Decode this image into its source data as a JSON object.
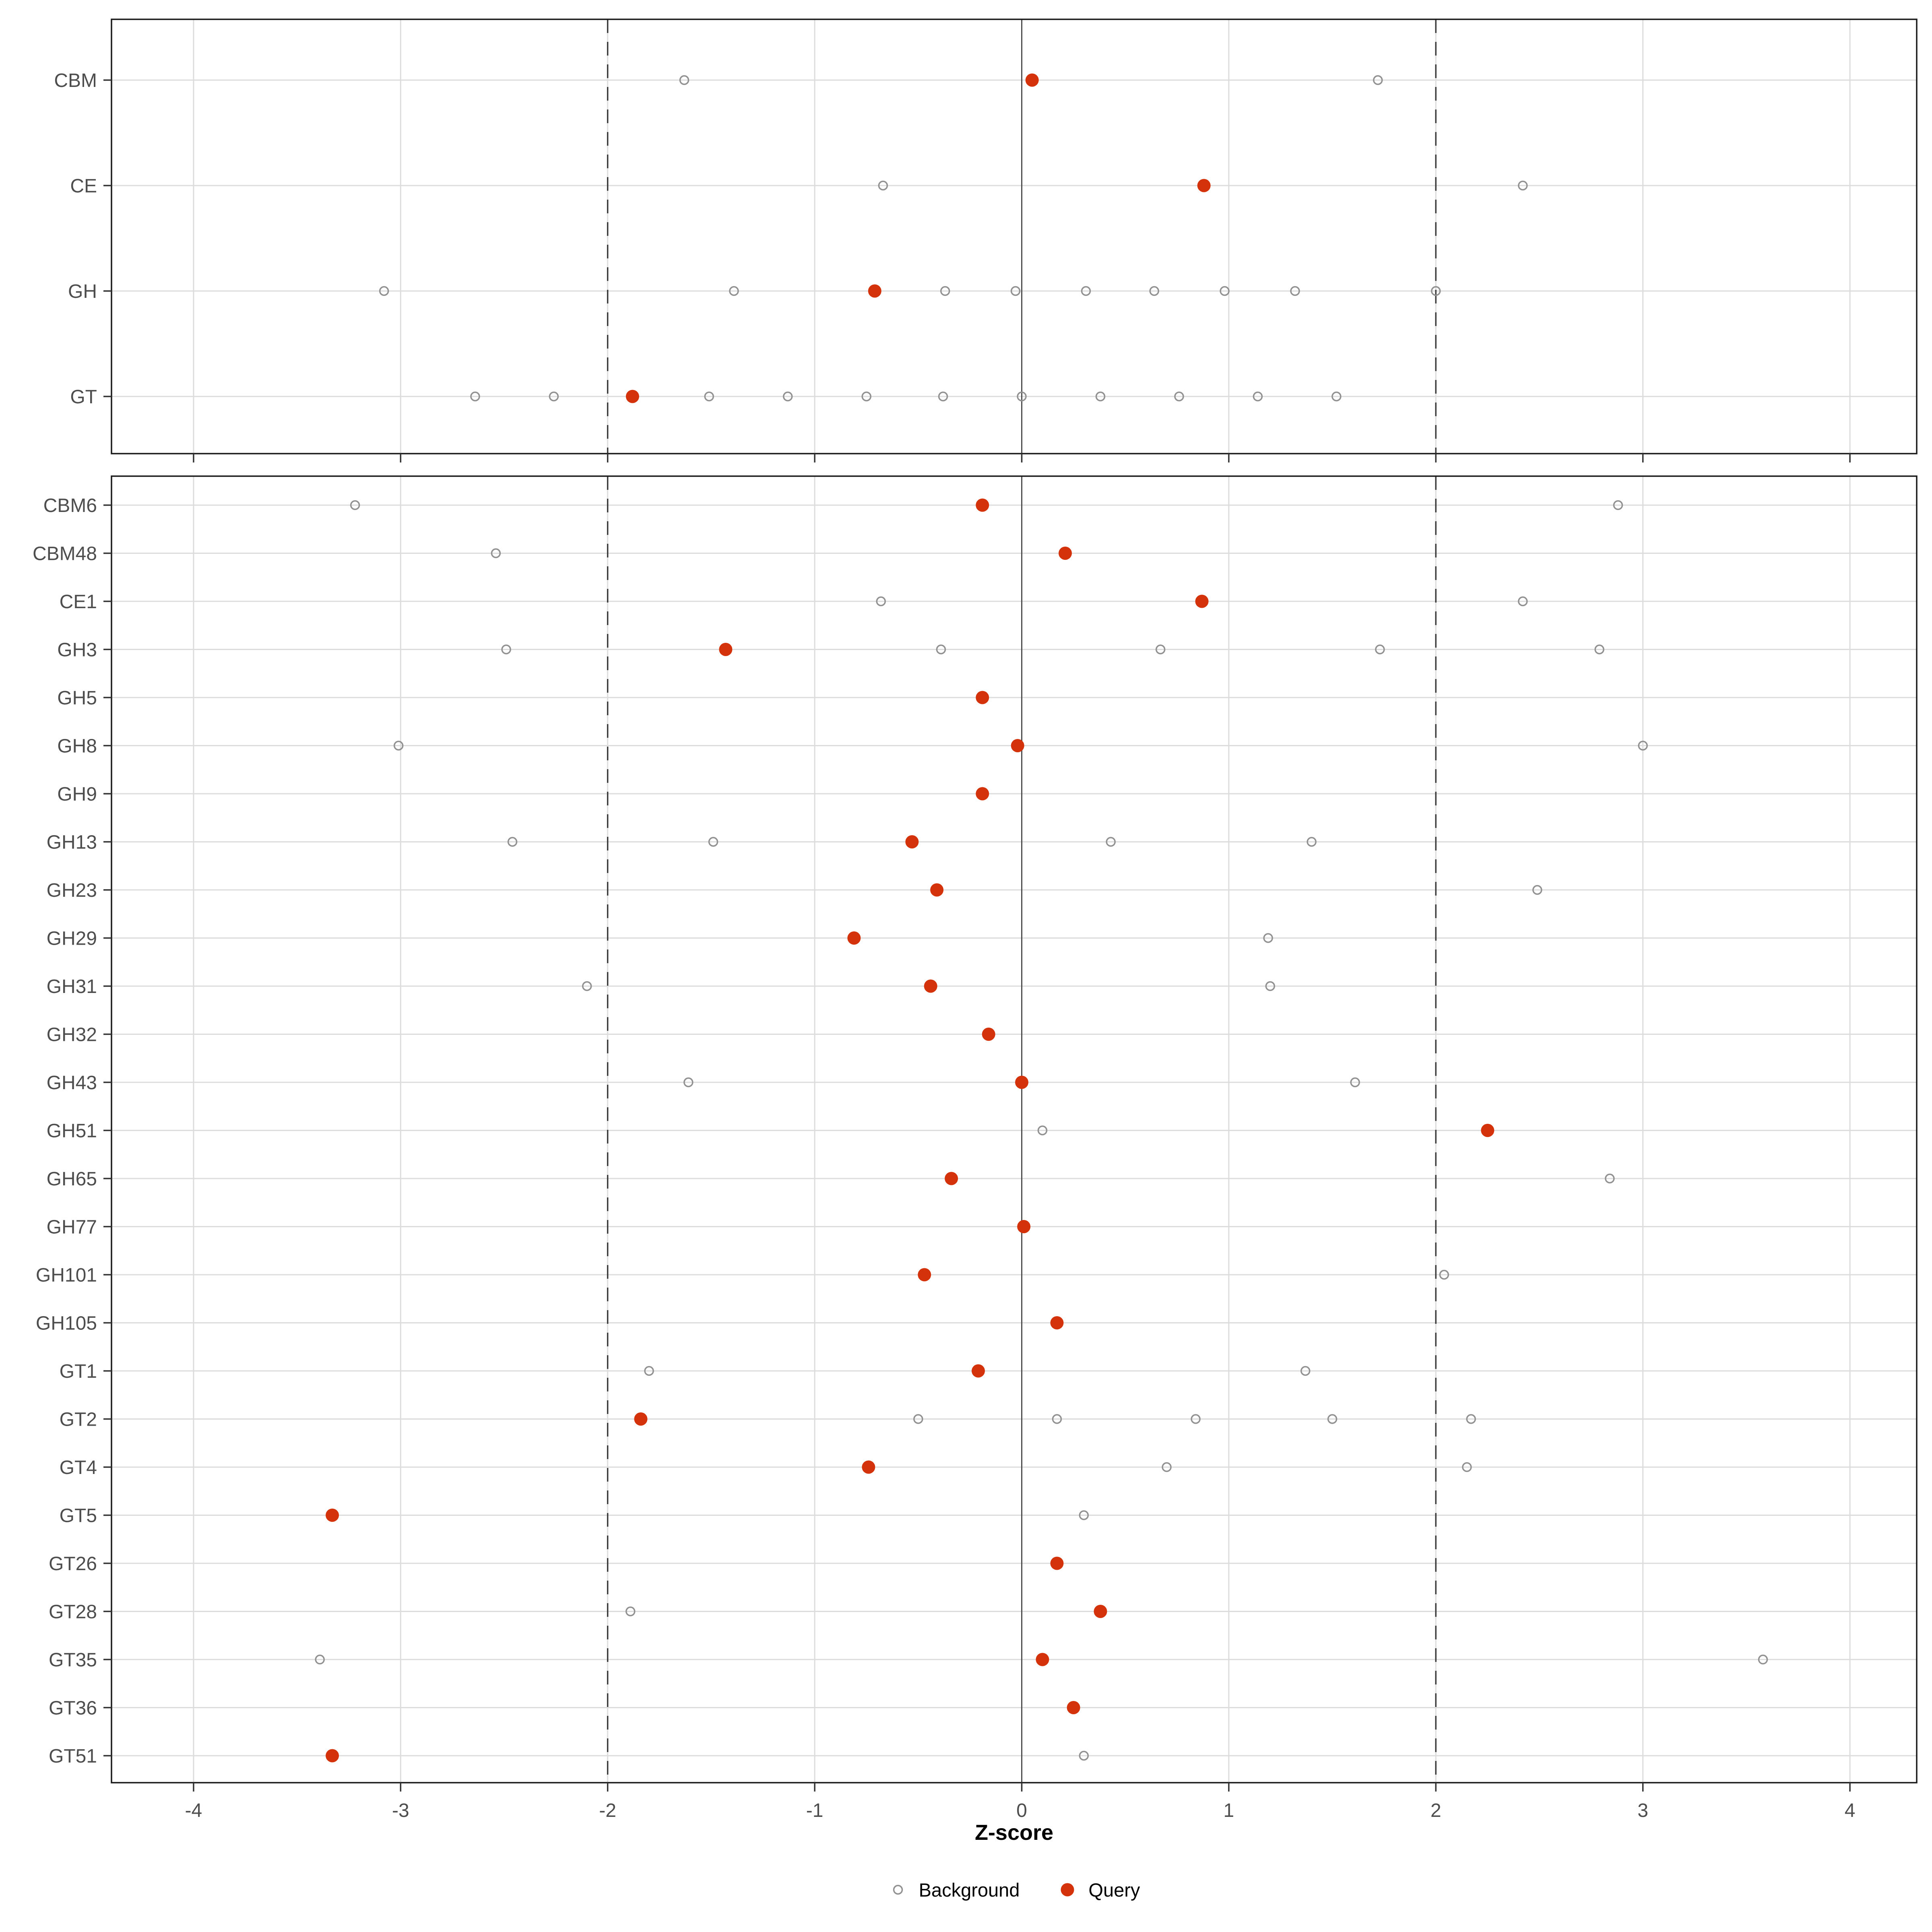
{
  "chart_data": {
    "type": "scatter",
    "title": "",
    "xlabel": "Z-score",
    "ylabel": "",
    "x_ticks": [
      -4,
      -3,
      -2,
      -1,
      0,
      1,
      2,
      3,
      4
    ],
    "xlim": [
      -4.4,
      4.33
    ],
    "grid": "major",
    "legend_position": "bottom",
    "reference_lines": {
      "dashed_at": [
        -2,
        2
      ],
      "solid_at": [
        0
      ]
    },
    "legend": {
      "items": [
        {
          "label": "Background",
          "marker": "open-circle"
        },
        {
          "label": "Query",
          "marker": "filled-circle"
        }
      ]
    },
    "panels": [
      {
        "name": "top",
        "rows": [
          {
            "label": "CBM",
            "query": 0.05,
            "background": [
              -1.63,
              1.72
            ]
          },
          {
            "label": "CE",
            "query": 0.88,
            "background": [
              -0.67,
              2.42
            ]
          },
          {
            "label": "GH",
            "query": -0.71,
            "background": [
              -3.08,
              -1.39,
              -0.37,
              -0.03,
              0.31,
              0.64,
              0.98,
              1.32,
              2.0
            ]
          },
          {
            "label": "GT",
            "query": -1.88,
            "background": [
              -2.64,
              -2.26,
              -1.51,
              -1.13,
              -0.75,
              -0.38,
              0.0,
              0.38,
              0.76,
              1.14,
              1.52
            ]
          }
        ]
      },
      {
        "name": "bottom",
        "rows": [
          {
            "label": "CBM6",
            "query": -0.19,
            "background": [
              -3.22,
              2.88
            ]
          },
          {
            "label": "CBM48",
            "query": 0.21,
            "background": [
              -2.54
            ]
          },
          {
            "label": "CE1",
            "query": 0.87,
            "background": [
              -0.68,
              2.42
            ]
          },
          {
            "label": "GH3",
            "query": -1.43,
            "background": [
              -2.49,
              -0.39,
              0.67,
              1.73,
              2.79
            ]
          },
          {
            "label": "GH5",
            "query": -0.19,
            "background": []
          },
          {
            "label": "GH8",
            "query": -0.02,
            "background": [
              -3.01,
              3.0
            ]
          },
          {
            "label": "GH9",
            "query": -0.19,
            "background": []
          },
          {
            "label": "GH13",
            "query": -0.53,
            "background": [
              -2.46,
              -1.49,
              0.43,
              1.4
            ]
          },
          {
            "label": "GH23",
            "query": -0.41,
            "background": [
              2.49
            ]
          },
          {
            "label": "GH29",
            "query": -0.81,
            "background": [
              1.19
            ]
          },
          {
            "label": "GH31",
            "query": -0.44,
            "background": [
              -2.1,
              1.2
            ]
          },
          {
            "label": "GH32",
            "query": -0.16,
            "background": []
          },
          {
            "label": "GH43",
            "query": 0.0,
            "background": [
              -1.61,
              1.61
            ]
          },
          {
            "label": "GH51",
            "query": 2.25,
            "background": [
              0.1
            ]
          },
          {
            "label": "GH65",
            "query": -0.34,
            "background": [
              2.84
            ]
          },
          {
            "label": "GH77",
            "query": 0.01,
            "background": []
          },
          {
            "label": "GH101",
            "query": -0.47,
            "background": [
              2.04
            ]
          },
          {
            "label": "GH105",
            "query": 0.17,
            "background": []
          },
          {
            "label": "GT1",
            "query": -0.21,
            "background": [
              -1.8,
              1.37
            ]
          },
          {
            "label": "GT2",
            "query": -1.84,
            "background": [
              -0.5,
              0.17,
              0.84,
              1.5,
              2.17
            ]
          },
          {
            "label": "GT4",
            "query": -0.74,
            "background": [
              0.7,
              2.15
            ]
          },
          {
            "label": "GT5",
            "query": -3.33,
            "background": [
              0.3
            ]
          },
          {
            "label": "GT26",
            "query": 0.17,
            "background": []
          },
          {
            "label": "GT28",
            "query": 0.38,
            "background": [
              -1.89
            ]
          },
          {
            "label": "GT35",
            "query": 0.1,
            "background": [
              -3.39,
              3.58
            ]
          },
          {
            "label": "GT36",
            "query": 0.25,
            "background": []
          },
          {
            "label": "GT51",
            "query": -3.33,
            "background": [
              0.3
            ]
          }
        ]
      }
    ]
  },
  "colors": {
    "query": "#d4320b",
    "background_stroke": "#919191",
    "grid": "#dcdcdc",
    "axis_text": "#4d4d4d",
    "label_text": "#4d4d4d",
    "ref_dashed": "#3c3c3c",
    "ref_solid": "#4d4d4d",
    "panel_border": "#1a1a1a",
    "tick": "#333333",
    "page_background": "#ffffff"
  }
}
